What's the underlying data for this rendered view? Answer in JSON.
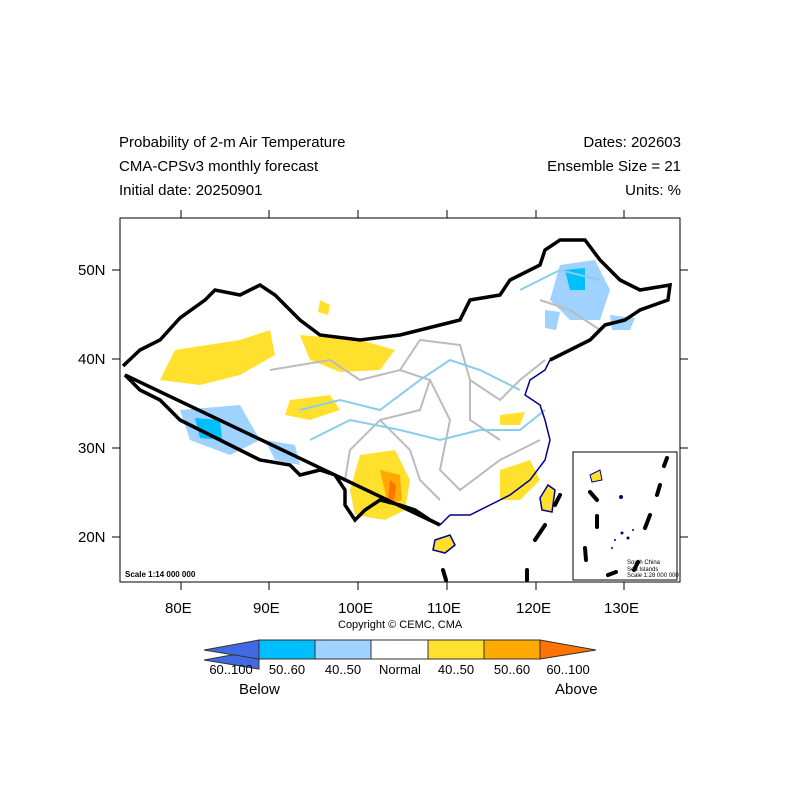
{
  "header": {
    "title_left": [
      "Probability of 2-m Air Temperature",
      "CMA-CPSv3 monthly forecast",
      "Initial date: 20250901"
    ],
    "title_right": [
      "Dates: 202603",
      "Ensemble Size = 21",
      "Units: %"
    ]
  },
  "map": {
    "lon_ticks": [
      "80E",
      "90E",
      "100E",
      "110E",
      "120E",
      "130E"
    ],
    "lat_ticks": [
      "50N",
      "40N",
      "30N",
      "20N"
    ],
    "scale_main": "Scale 1:14 000 000",
    "inset_labels": [
      "South China",
      "Sea Islands",
      "Scale 1:28 000 000"
    ],
    "copyright": "Copyright © CEMC, CMA"
  },
  "legend": {
    "bins": [
      {
        "label": "60..100",
        "color": "#4169e1"
      },
      {
        "label": "50..60",
        "color": "#00bfff"
      },
      {
        "label": "40..50",
        "color": "#a0d2ff"
      },
      {
        "label": "Normal",
        "color": "#ffffff"
      },
      {
        "label": "40..50",
        "color": "#ffe12d"
      },
      {
        "label": "50..60",
        "color": "#ffaa00"
      },
      {
        "label": "60..100",
        "color": "#ff7300"
      }
    ],
    "below": "Below",
    "above": "Above"
  }
}
